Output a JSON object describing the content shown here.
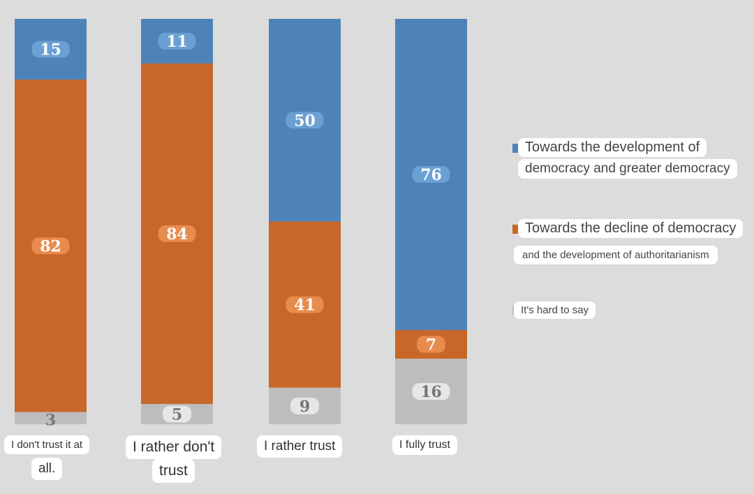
{
  "chart_data": {
    "type": "bar",
    "stacked": true,
    "normalized_percent": true,
    "categories": [
      [
        "I don't trust it at",
        "all."
      ],
      [
        "I rather don't",
        "trust"
      ],
      [
        "I rather trust"
      ],
      [
        "I fully trust"
      ]
    ],
    "series": [
      {
        "name": "Towards the development of democracy and greater democracy",
        "values": [
          15,
          11,
          50,
          76
        ],
        "color": "#4d83b8",
        "label_bg": "#6aa0d4"
      },
      {
        "name": "Towards the decline of democracy and the development of authoritarianism",
        "values": [
          82,
          84,
          41,
          7
        ],
        "color": "#c8672a",
        "label_bg": "#e88c4d"
      },
      {
        "name": "It's hard to say",
        "values": [
          3,
          5,
          9,
          16
        ],
        "color": "#bdbdbd",
        "label_bg": "#e6e6e6"
      }
    ],
    "ylim": [
      0,
      100
    ],
    "grid": false,
    "legend_position": "right"
  },
  "legend": [
    {
      "lines": [
        "Towards the development of",
        "democracy and greater democracy"
      ]
    },
    {
      "lines": [
        "Towards the decline of democracy",
        "and the development of authoritarianism"
      ]
    },
    {
      "lines": [
        "It's hard to say"
      ]
    }
  ]
}
